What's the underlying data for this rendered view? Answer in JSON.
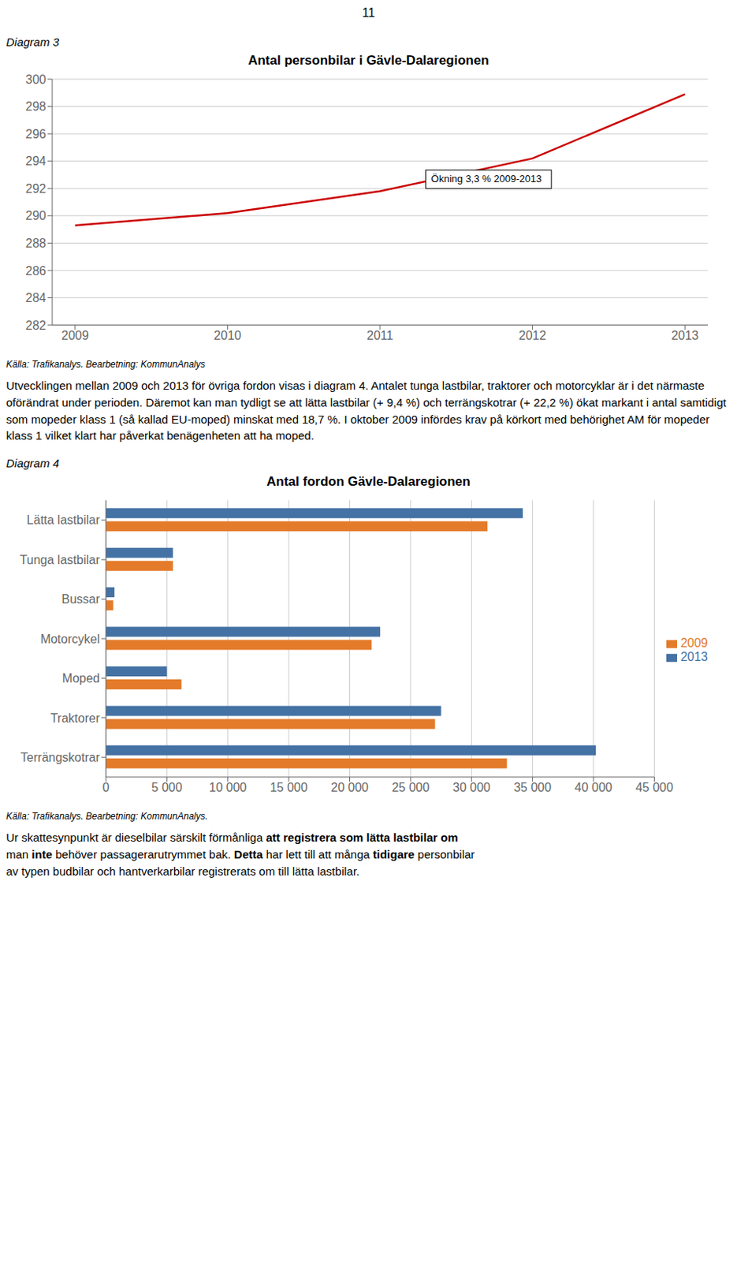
{
  "page_number": "11",
  "chart_data": [
    {
      "type": "line",
      "label": "Diagram 3",
      "title": "Antal personbilar i Gävle-Dalaregionen",
      "x": [
        2009,
        2010,
        2011,
        2012,
        2013
      ],
      "values": [
        289.3,
        290.2,
        291.8,
        294.2,
        298.9
      ],
      "color": "#cc0000",
      "xlim": [
        2008.85,
        2013.15
      ],
      "xticks": [
        2009,
        2010,
        2011,
        2012,
        2013
      ],
      "ylim": [
        282,
        300
      ],
      "yticks": [
        282,
        284,
        286,
        288,
        290,
        292,
        294,
        296,
        298,
        300
      ],
      "grid": true,
      "annotations": [
        {
          "text": "Ökning 3,3 % 2009-2013",
          "x": 2011.3,
          "y": 292.0
        }
      ],
      "source": "Källa: Trafikanalys.  Bearbetning: KommunAnalys"
    },
    {
      "type": "bar",
      "label": "Diagram 4",
      "title": "Antal fordon Gävle-Dalaregionen",
      "orientation": "horizontal",
      "categories": [
        "Terrängskotrar",
        "Traktorer",
        "Moped",
        "Motorcykel",
        "Bussar",
        "Tunga lastbilar",
        "Lätta lastbilar"
      ],
      "series": [
        {
          "name": "2013",
          "color": "#4472a4",
          "values": [
            40200,
            27500,
            5000,
            22500,
            700,
            5500,
            34200
          ]
        },
        {
          "name": "2009",
          "color": "#e47b2a",
          "values": [
            32900,
            27000,
            6200,
            21800,
            600,
            5500,
            31300
          ]
        }
      ],
      "xlim": [
        0,
        45000
      ],
      "xticks": [
        0,
        {
          "value": 5000,
          "label": "5 000"
        },
        {
          "value": 10000,
          "label": "10 000"
        },
        {
          "value": 15000,
          "label": "15 000"
        },
        {
          "value": 20000,
          "label": "20 000"
        },
        {
          "value": 25000,
          "label": "25 000"
        },
        {
          "value": 30000,
          "label": "30 000"
        },
        {
          "value": 35000,
          "label": "35 000"
        },
        {
          "value": 40000,
          "label": "40 000"
        },
        {
          "value": 45000,
          "label": "45 000"
        }
      ],
      "grid": true,
      "legend": "right",
      "source": "Källa: Trafikanalys.  Bearbetning: KommunAnalys."
    }
  ],
  "paragraphs": [
    {
      "lines": [
        [
          {
            "text": "Utvecklingen mellan 2009 och 2013 för övriga fordon visas i diagram 4. Antalet tunga lastbilar, traktorer och motorcyklar är i det närmaste oförändrat under perioden. Däremot kan man tydligt se att lätta lastbilar (+ 9,4 %) och terrängskotrar (+ 22,2 %) ökat markant i antal samtidigt som mopeder klass 1 (så kallad EU-moped) minskat med 18,7 %. I oktober 2009 infördes krav på körkort med behörighet AM för mopeder klass 1 vilket klart har påverkat benägenheten att ha moped.",
            "bold": false
          }
        ]
      ]
    },
    {
      "lines": [
        [
          {
            "text": "Ur skattesynpunkt är dieselbilar särskilt förmånliga ",
            "bold": false
          },
          {
            "text": "att registrera som lätta lastbilar om",
            "bold": true
          }
        ],
        [
          {
            "text": "man ",
            "bold": false
          },
          {
            "text": "inte",
            "bold": true
          },
          {
            "text": " behöver passagerarutrymmet bak. ",
            "bold": false
          },
          {
            "text": "Detta",
            "bold": true
          },
          {
            "text": " har lett till att många ",
            "bold": false
          },
          {
            "text": "tidigare",
            "bold": true
          },
          {
            "text": " personbilar",
            "bold": false
          }
        ],
        [
          {
            "text": "av typen budbilar och hantverkarbilar registrerats om till lätta lastbilar.",
            "bold": false
          }
        ]
      ]
    }
  ]
}
